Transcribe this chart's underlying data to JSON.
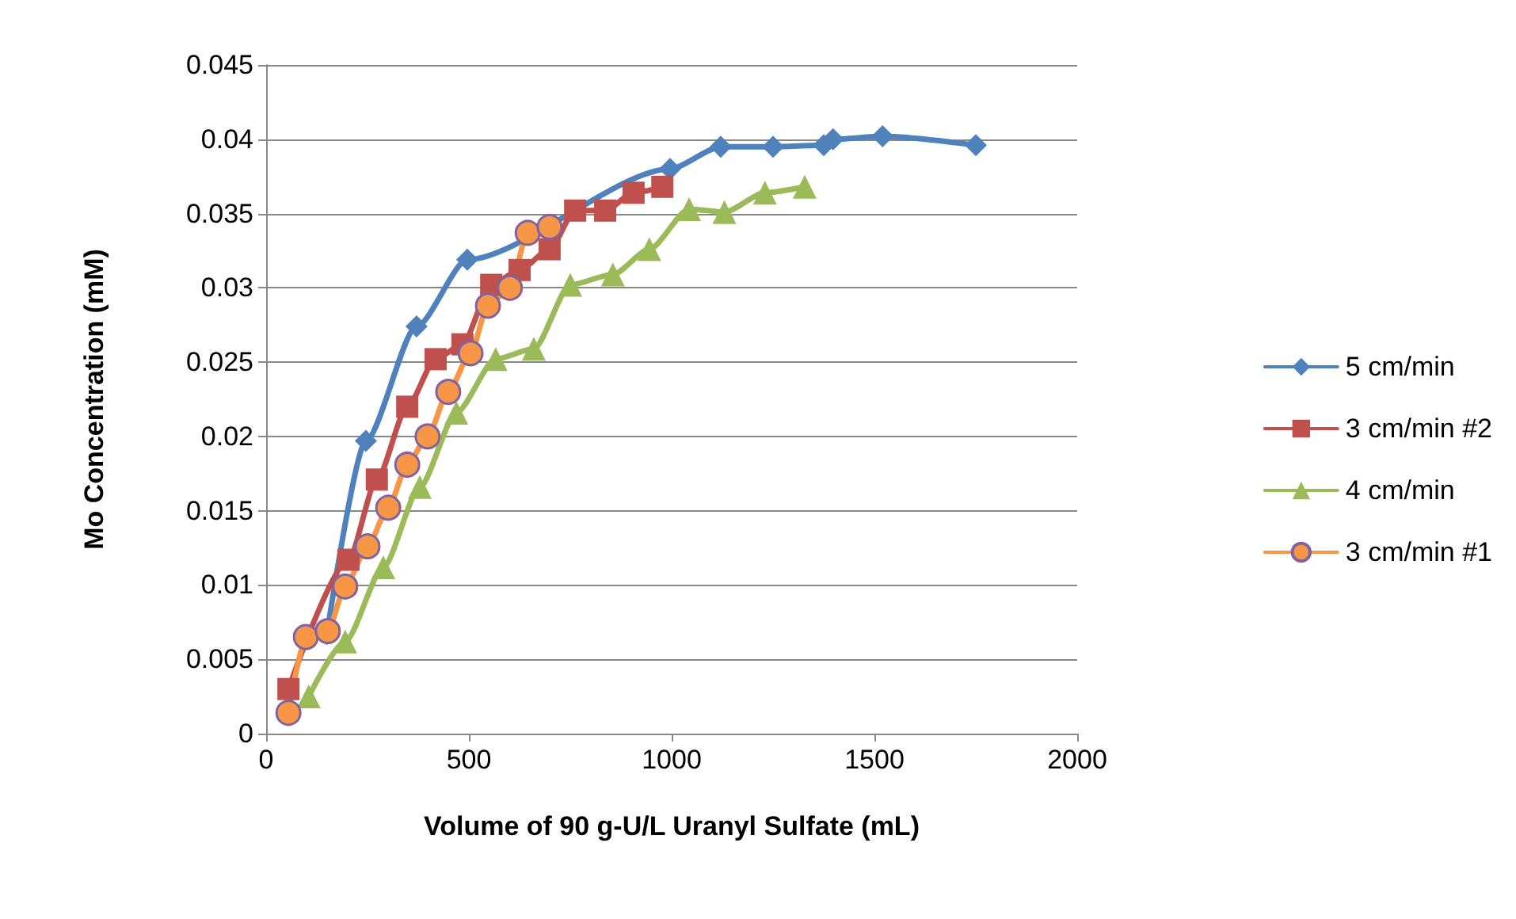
{
  "chart_data": {
    "type": "line",
    "xlabel": "Volume of 90 g-U/L Uranyl Sulfate (mL)",
    "ylabel": "Mo Concentration (mM)",
    "xlim": [
      0,
      2000
    ],
    "xticks": [
      0,
      500,
      1000,
      1500,
      2000
    ],
    "ylim": [
      0,
      0.045
    ],
    "yticks": [
      0,
      0.005,
      0.01,
      0.015,
      0.02,
      0.025,
      0.03,
      0.035,
      0.04,
      0.045
    ],
    "grid": "y",
    "legend": "right",
    "line_style": "solid",
    "series": [
      {
        "name": "5 cm/min",
        "color": "#4f81bd",
        "marker": "diamond",
        "x": [
          150,
          246,
          371,
          496,
          996,
          1121,
          1250,
          1375,
          1398,
          1520,
          1750
        ],
        "values": [
          0.0067,
          0.0197,
          0.0274,
          0.0319,
          0.038,
          0.0395,
          0.0395,
          0.0396,
          0.04,
          0.0402,
          0.0396
        ]
      },
      {
        "name": "3 cm/min #2",
        "color": "#c0504d",
        "marker": "square",
        "x": [
          55,
          203,
          273,
          348,
          418,
          484,
          555,
          625,
          699,
          762,
          836,
          906,
          977
        ],
        "values": [
          0.003,
          0.0117,
          0.0171,
          0.022,
          0.0252,
          0.0262,
          0.0302,
          0.0312,
          0.0326,
          0.0352,
          0.0352,
          0.0364,
          0.0368
        ]
      },
      {
        "name": "4 cm/min",
        "color": "#9bbb59",
        "marker": "triangle",
        "x": [
          105,
          195,
          289,
          379,
          469,
          566,
          660,
          750,
          855,
          945,
          1043,
          1130,
          1230,
          1328
        ],
        "values": [
          0.0025,
          0.0062,
          0.0112,
          0.0166,
          0.0216,
          0.0252,
          0.0259,
          0.0302,
          0.0309,
          0.0326,
          0.0353,
          0.0351,
          0.0364,
          0.0368
        ]
      },
      {
        "name": "3 cm/min #1",
        "color": "#f79646",
        "marker": "circle",
        "x": [
          55,
          98,
          152,
          195,
          250,
          301,
          348,
          398,
          449,
          504,
          547,
          601,
          645,
          699
        ],
        "values": [
          0.0014,
          0.0065,
          0.0069,
          0.0099,
          0.0126,
          0.0152,
          0.0181,
          0.02,
          0.023,
          0.0256,
          0.0288,
          0.03,
          0.0337,
          0.0341
        ]
      }
    ]
  }
}
